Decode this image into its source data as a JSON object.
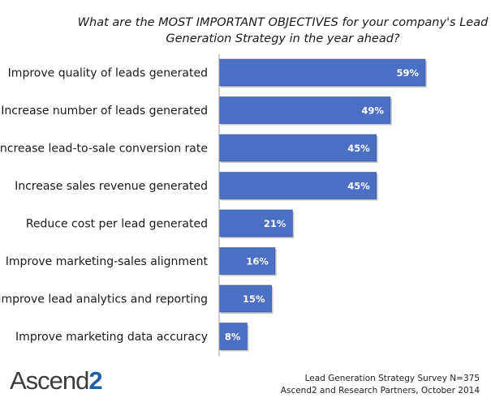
{
  "title_line1": "What are the MOST IMPORTANT OBJECTIVES for your company's Lead",
  "title_line2": "Generation Strategy in the year ahead?",
  "logo": {
    "text_main": "Ascend",
    "text_accent": "2"
  },
  "source_line1": "Lead Generation Strategy Survey N=375",
  "source_line2": "Ascend2 and Research Partners, October 2014",
  "colors": {
    "bar": "#4a6fc3",
    "bar_edge": "#34539b",
    "axis": "#9a9a9a",
    "label": "#ffffff",
    "text": "#1a1a1a"
  },
  "chart_data": {
    "type": "bar",
    "orientation": "horizontal",
    "categories": [
      "Improve quality of leads generated",
      "Increase number of leads generated",
      "Increase lead-to-sale conversion rate",
      "Increase sales revenue generated",
      "Reduce cost per lead generated",
      "Improve marketing-sales alignment",
      "Improve lead analytics and reporting",
      "Improve marketing data accuracy"
    ],
    "values": [
      59,
      49,
      45,
      45,
      21,
      16,
      15,
      8
    ],
    "value_labels": [
      "59%",
      "49%",
      "45%",
      "45%",
      "21%",
      "16%",
      "15%",
      "8%"
    ],
    "unit": "%",
    "xlim": [
      0,
      65
    ]
  }
}
